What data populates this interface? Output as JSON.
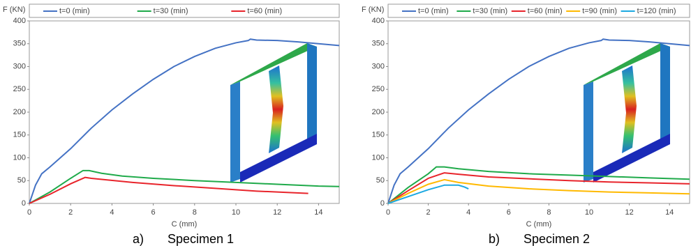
{
  "chart_data": [
    {
      "type": "line",
      "y_label": "F (KN)",
      "x_label": "C (mm)",
      "caption_label": "a)",
      "caption": "Specimen 1",
      "xlim": [
        0,
        15
      ],
      "ylim": [
        0,
        400
      ],
      "xticks": [
        0,
        2,
        4,
        6,
        8,
        10,
        12,
        14
      ],
      "yticks": [
        0,
        50,
        100,
        150,
        200,
        250,
        300,
        350,
        400
      ],
      "series": [
        {
          "name": "t=0 (min)",
          "color": "#4472c4",
          "x": [
            0,
            0.3,
            0.6,
            1,
            2,
            3,
            4,
            5,
            6,
            7,
            8,
            9,
            10,
            10.6,
            10.7,
            11,
            12,
            13,
            14,
            15
          ],
          "values": [
            0,
            40,
            65,
            80,
            120,
            165,
            205,
            240,
            272,
            300,
            322,
            340,
            352,
            357,
            360,
            358,
            357,
            354,
            350,
            346
          ]
        },
        {
          "name": "t=30 (min)",
          "color": "#1faa4a",
          "x": [
            0,
            1,
            2,
            2.6,
            2.9,
            3.5,
            4.5,
            6,
            8,
            10,
            12,
            14,
            15
          ],
          "values": [
            0,
            25,
            55,
            72,
            72,
            66,
            60,
            55,
            50,
            46,
            42,
            38,
            37
          ]
        },
        {
          "name": "t=60 (min)",
          "color": "#e8242b",
          "x": [
            0,
            1,
            2,
            2.7,
            3,
            5,
            7,
            9,
            11,
            13.5
          ],
          "values": [
            0,
            20,
            43,
            57,
            55,
            46,
            39,
            33,
            27,
            22
          ]
        }
      ]
    },
    {
      "type": "line",
      "y_label": "F (KN)",
      "x_label": "C (mm)",
      "caption_label": "b)",
      "caption": "Specimen 2",
      "xlim": [
        0,
        15
      ],
      "ylim": [
        0,
        400
      ],
      "xticks": [
        0,
        2,
        4,
        6,
        8,
        10,
        12,
        14
      ],
      "yticks": [
        0,
        50,
        100,
        150,
        200,
        250,
        300,
        350,
        400
      ],
      "series": [
        {
          "name": "t=0 (min)",
          "color": "#4472c4",
          "x": [
            0,
            0.3,
            0.6,
            1,
            2,
            3,
            4,
            5,
            6,
            7,
            8,
            9,
            10,
            10.6,
            10.7,
            11,
            12,
            13,
            14,
            15
          ],
          "values": [
            0,
            40,
            65,
            80,
            120,
            165,
            205,
            240,
            272,
            300,
            322,
            340,
            352,
            357,
            360,
            358,
            357,
            354,
            350,
            346
          ]
        },
        {
          "name": "t=30 (min)",
          "color": "#1faa4a",
          "x": [
            0,
            1,
            2,
            2.4,
            2.8,
            3.5,
            5,
            7,
            9,
            11,
            13,
            15
          ],
          "values": [
            0,
            35,
            65,
            80,
            80,
            76,
            70,
            65,
            62,
            59,
            56,
            53
          ]
        },
        {
          "name": "t=60 (min)",
          "color": "#e8242b",
          "x": [
            0,
            1,
            2,
            2.8,
            3.5,
            5,
            7,
            9,
            11,
            13,
            15
          ],
          "values": [
            0,
            28,
            55,
            67,
            64,
            58,
            54,
            50,
            47,
            45,
            43
          ]
        },
        {
          "name": "t=90 (min)",
          "color": "#ffb900",
          "x": [
            0,
            1,
            2,
            2.8,
            3.5,
            5,
            7,
            9,
            11,
            13,
            15
          ],
          "values": [
            0,
            22,
            42,
            52,
            46,
            38,
            32,
            28,
            25,
            23,
            21
          ]
        },
        {
          "name": "t=120 (min)",
          "color": "#1ca9e1",
          "x": [
            0,
            1,
            2,
            2.8,
            3.5,
            3.8,
            4
          ],
          "values": [
            0,
            15,
            30,
            40,
            40,
            36,
            32
          ]
        }
      ]
    }
  ]
}
